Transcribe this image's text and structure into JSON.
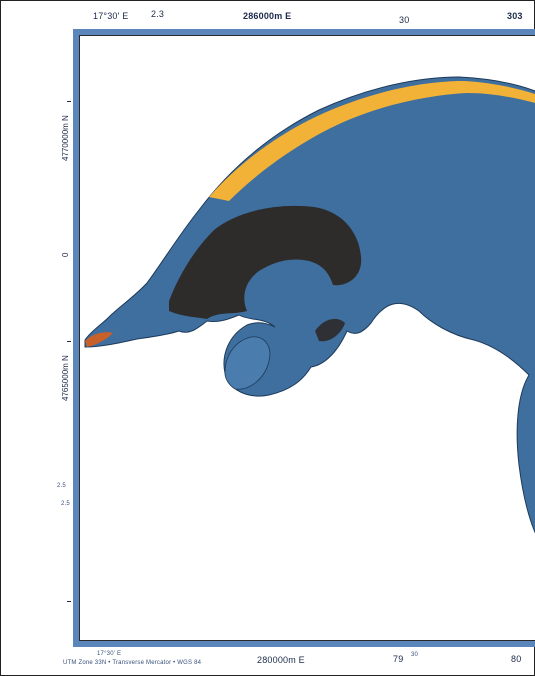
{
  "map": {
    "colors": {
      "frame": "#5b86bb",
      "water_body": "#3f6f9e",
      "dark_zone": "#2b2622",
      "highlight_band": "#f2b237",
      "accent_tip": "#c8602a",
      "background": "#ffffff"
    },
    "top_labels": {
      "left": "17°30' E",
      "left_marker": "2.3",
      "center": "286000m E",
      "right_marker": "30",
      "far_right": "303"
    },
    "left_labels": {
      "upper": "4770000m N",
      "upper_mid": "0",
      "mid": "4765000m N",
      "lower": "2.5",
      "lower_mid": "2.5"
    },
    "bottom_labels": {
      "left_small": "17°30' E",
      "left_credit": "UTM Zone 33N • Transverse Mercator • WGS 84",
      "center": "280000m E",
      "center_right": "79",
      "center_right_mark": "30",
      "right": "80"
    }
  }
}
